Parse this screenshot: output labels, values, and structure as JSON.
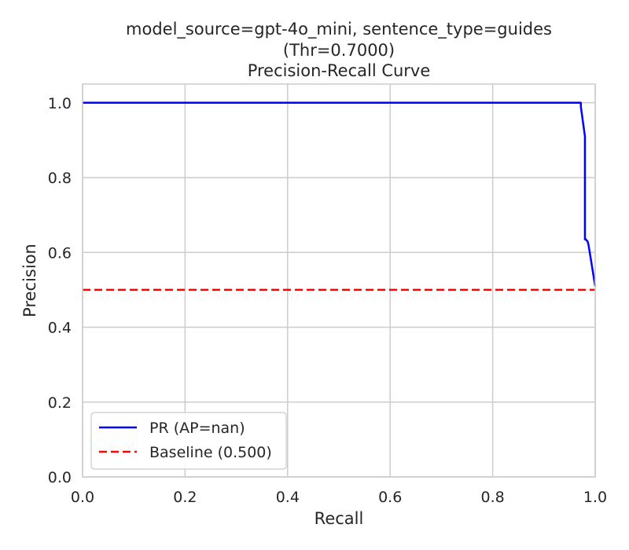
{
  "chart_data": {
    "type": "line",
    "title_lines": [
      "model_source=gpt-4o_mini, sentence_type=guides",
      "(Thr=0.7000)",
      "Precision-Recall Curve"
    ],
    "xlabel": "Recall",
    "ylabel": "Precision",
    "xlim": [
      0.0,
      1.0
    ],
    "ylim": [
      0.0,
      1.05
    ],
    "xticks": [
      0.0,
      0.2,
      0.4,
      0.6,
      0.8,
      1.0
    ],
    "xtick_labels": [
      "0.0",
      "0.2",
      "0.4",
      "0.6",
      "0.8",
      "1.0"
    ],
    "yticks": [
      0.0,
      0.2,
      0.4,
      0.6,
      0.8,
      1.0
    ],
    "ytick_labels": [
      "0.0",
      "0.2",
      "0.4",
      "0.6",
      "0.8",
      "1.0"
    ],
    "grid": true,
    "legend_position": "lower-left",
    "series": [
      {
        "name": "PR (AP=nan)",
        "color": "#0000ff",
        "style": "solid",
        "x": [
          0.0,
          0.972,
          0.972,
          0.975,
          0.98,
          0.98,
          0.982,
          0.983,
          0.985,
          0.987,
          1.0
        ],
        "y": [
          1.0,
          1.0,
          0.99,
          0.96,
          0.91,
          0.635,
          0.635,
          0.632,
          0.63,
          0.62,
          0.51
        ]
      },
      {
        "name": "Baseline (0.500)",
        "color": "#ff0000",
        "style": "dashed",
        "x": [
          0.0,
          1.0
        ],
        "y": [
          0.5,
          0.5
        ]
      }
    ]
  },
  "colors": {
    "grid": "#cccccc",
    "axes_edge": "#cccccc",
    "text": "#262626"
  }
}
